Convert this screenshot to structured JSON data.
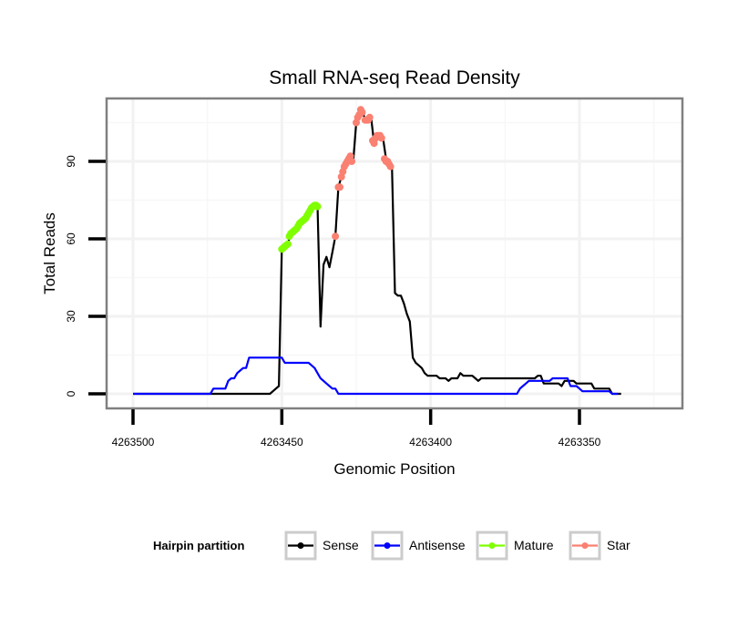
{
  "chart_data": {
    "type": "line",
    "title": "Small RNA-seq Read Density",
    "xlabel": "Genomic Position",
    "ylabel": "Total Reads",
    "xlim": [
      4263509,
      4263315
    ],
    "x_reversed": true,
    "ylim": [
      -5,
      115
    ],
    "grid": true,
    "x_ticks": [
      4263500,
      4263450,
      4263400,
      4263350
    ],
    "x_tick_labels": [
      "4263500",
      "4263450",
      "4263400",
      "4263350"
    ],
    "y_ticks": [
      0,
      30,
      60,
      90
    ],
    "y_tick_labels": [
      "0",
      "30",
      "60",
      "90"
    ],
    "legend": {
      "title": "Hairpin partition",
      "placement": "bottom",
      "entries": [
        {
          "label": "Sense",
          "color": "#000000"
        },
        {
          "label": "Antisense",
          "color": "#0000ff"
        },
        {
          "label": "Mature",
          "color": "#7fff00"
        },
        {
          "label": "Star",
          "color": "#fa8072"
        }
      ]
    },
    "series": [
      {
        "name": "Sense",
        "color": "#000000",
        "points": [
          [
            4263500,
            0
          ],
          [
            4263470,
            0
          ],
          [
            4263454,
            0
          ],
          [
            4263453,
            1
          ],
          [
            4263452,
            2
          ],
          [
            4263451,
            3
          ],
          [
            4263450,
            56
          ],
          [
            4263449,
            57
          ],
          [
            4263448,
            58
          ],
          [
            4263447,
            62
          ],
          [
            4263446,
            63
          ],
          [
            4263445,
            64
          ],
          [
            4263444,
            66
          ],
          [
            4263443,
            67
          ],
          [
            4263442,
            68
          ],
          [
            4263441,
            70
          ],
          [
            4263440,
            72
          ],
          [
            4263439,
            73
          ],
          [
            4263438,
            73
          ],
          [
            4263437,
            26
          ],
          [
            4263436,
            50
          ],
          [
            4263435,
            53
          ],
          [
            4263434,
            49
          ],
          [
            4263433,
            55
          ],
          [
            4263432,
            61
          ],
          [
            4263431,
            80
          ],
          [
            4263430,
            84
          ],
          [
            4263429,
            88
          ],
          [
            4263428,
            90
          ],
          [
            4263427,
            92
          ],
          [
            4263426,
            90
          ],
          [
            4263425,
            105
          ],
          [
            4263424,
            108
          ],
          [
            4263423,
            110
          ],
          [
            4263422,
            106
          ],
          [
            4263421,
            106
          ],
          [
            4263420,
            107
          ],
          [
            4263419,
            97
          ],
          [
            4263418,
            100
          ],
          [
            4263417,
            100
          ],
          [
            4263416,
            99
          ],
          [
            4263415,
            91
          ],
          [
            4263414,
            89
          ],
          [
            4263413,
            88
          ],
          [
            4263412,
            39
          ],
          [
            4263411,
            38
          ],
          [
            4263410,
            38
          ],
          [
            4263409,
            35
          ],
          [
            4263408,
            31
          ],
          [
            4263407,
            28
          ],
          [
            4263406,
            14
          ],
          [
            4263405,
            12
          ],
          [
            4263404,
            11
          ],
          [
            4263403,
            10
          ],
          [
            4263402,
            8
          ],
          [
            4263401,
            7
          ],
          [
            4263400,
            7
          ],
          [
            4263398,
            7
          ],
          [
            4263397,
            6
          ],
          [
            4263395,
            6
          ],
          [
            4263394,
            5
          ],
          [
            4263393,
            6
          ],
          [
            4263391,
            6
          ],
          [
            4263390,
            8
          ],
          [
            4263389,
            7
          ],
          [
            4263386,
            7
          ],
          [
            4263385,
            6
          ],
          [
            4263384,
            5
          ],
          [
            4263383,
            6
          ],
          [
            4263380,
            6
          ],
          [
            4263370,
            6
          ],
          [
            4263365,
            6
          ],
          [
            4263364,
            7
          ],
          [
            4263363,
            7
          ],
          [
            4263362,
            4
          ],
          [
            4263360,
            4
          ],
          [
            4263357,
            4
          ],
          [
            4263356,
            3
          ],
          [
            4263355,
            5
          ],
          [
            4263352,
            5
          ],
          [
            4263351,
            4
          ],
          [
            4263346,
            4
          ],
          [
            4263345,
            2
          ],
          [
            4263340,
            2
          ],
          [
            4263339,
            0
          ],
          [
            4263336,
            0
          ]
        ]
      },
      {
        "name": "Antisense",
        "color": "#0000ff",
        "points": [
          [
            4263500,
            0
          ],
          [
            4263474,
            0
          ],
          [
            4263473,
            2
          ],
          [
            4263470,
            2
          ],
          [
            4263469,
            2
          ],
          [
            4263468,
            5
          ],
          [
            4263467,
            6
          ],
          [
            4263466,
            6
          ],
          [
            4263465,
            8
          ],
          [
            4263464,
            9
          ],
          [
            4263463,
            10
          ],
          [
            4263462,
            10
          ],
          [
            4263461,
            14
          ],
          [
            4263458,
            14
          ],
          [
            4263454,
            14
          ],
          [
            4263453,
            14
          ],
          [
            4263452,
            14
          ],
          [
            4263451,
            14
          ],
          [
            4263450,
            14
          ],
          [
            4263449,
            12
          ],
          [
            4263445,
            12
          ],
          [
            4263441,
            12
          ],
          [
            4263440,
            11
          ],
          [
            4263439,
            10
          ],
          [
            4263438,
            8
          ],
          [
            4263437,
            6
          ],
          [
            4263436,
            5
          ],
          [
            4263435,
            4
          ],
          [
            4263434,
            3
          ],
          [
            4263433,
            2
          ],
          [
            4263432,
            2
          ],
          [
            4263431,
            0
          ],
          [
            4263420,
            0
          ],
          [
            4263400,
            0
          ],
          [
            4263380,
            0
          ],
          [
            4263371,
            0
          ],
          [
            4263370,
            2
          ],
          [
            4263369,
            3
          ],
          [
            4263368,
            4
          ],
          [
            4263367,
            5
          ],
          [
            4263360,
            5
          ],
          [
            4263359,
            6
          ],
          [
            4263354,
            6
          ],
          [
            4263353,
            3
          ],
          [
            4263351,
            3
          ],
          [
            4263350,
            2
          ],
          [
            4263349,
            1
          ],
          [
            4263340,
            1
          ],
          [
            4263339,
            0
          ],
          [
            4263337,
            0
          ]
        ]
      },
      {
        "name": "Mature",
        "color": "#7fff00",
        "points": [
          [
            4263450,
            56
          ],
          [
            4263449.5,
            56.5
          ],
          [
            4263449,
            57
          ],
          [
            4263448.5,
            57.5
          ],
          [
            4263448,
            58
          ],
          [
            4263447.5,
            61
          ],
          [
            4263447,
            62
          ],
          [
            4263446.5,
            62.5
          ],
          [
            4263446,
            63
          ],
          [
            4263445.5,
            63.5
          ],
          [
            4263445,
            64
          ],
          [
            4263444.5,
            65
          ],
          [
            4263444,
            66
          ],
          [
            4263443.5,
            66.5
          ],
          [
            4263443,
            67
          ],
          [
            4263442.5,
            67.5
          ],
          [
            4263442,
            68
          ],
          [
            4263441.5,
            69
          ],
          [
            4263441,
            70
          ],
          [
            4263440.5,
            71
          ],
          [
            4263440,
            72
          ],
          [
            4263439.5,
            72.5
          ],
          [
            4263439,
            73
          ],
          [
            4263438.5,
            73
          ],
          [
            4263438,
            72.5
          ]
        ]
      },
      {
        "name": "Star",
        "color": "#fa8072",
        "points": [
          [
            4263432,
            61
          ],
          [
            4263431,
            80
          ],
          [
            4263430.5,
            80
          ],
          [
            4263430,
            84
          ],
          [
            4263429.5,
            86
          ],
          [
            4263429,
            88
          ],
          [
            4263428.5,
            89
          ],
          [
            4263428,
            90
          ],
          [
            4263427.5,
            91
          ],
          [
            4263427,
            92
          ],
          [
            4263426.5,
            90
          ],
          [
            4263425,
            105
          ],
          [
            4263424.5,
            107
          ],
          [
            4263424,
            108
          ],
          [
            4263423.5,
            110
          ],
          [
            4263423,
            109
          ],
          [
            4263422,
            106
          ],
          [
            4263421.5,
            106
          ],
          [
            4263421,
            106
          ],
          [
            4263420.5,
            107
          ],
          [
            4263419.5,
            98
          ],
          [
            4263419,
            97
          ],
          [
            4263418.5,
            99
          ],
          [
            4263418,
            100
          ],
          [
            4263417.5,
            100
          ],
          [
            4263417,
            100
          ],
          [
            4263416.5,
            99
          ],
          [
            4263415.5,
            91
          ],
          [
            4263415,
            90
          ],
          [
            4263414.5,
            90
          ],
          [
            4263414,
            89
          ],
          [
            4263413.5,
            88
          ]
        ]
      }
    ]
  }
}
